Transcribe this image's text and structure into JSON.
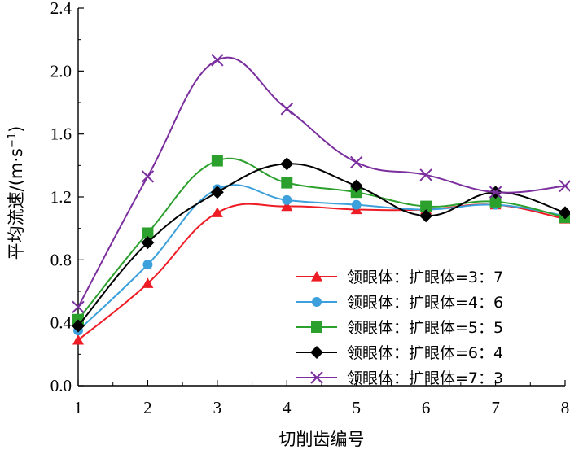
{
  "chart_data": {
    "type": "line",
    "title": "",
    "xlabel": "切削齿编号",
    "ylabel_main": "平均流速",
    "ylabel_unit_open": "/(m",
    "ylabel_unit_dot": "·",
    "ylabel_unit_s": "s",
    "ylabel_unit_exp": "−1",
    "ylabel_unit_close": ")",
    "ylabel": "平均流速/(m·s⁻¹)",
    "xlim": [
      1,
      8
    ],
    "ylim": [
      0,
      2.4
    ],
    "x": [
      1,
      2,
      3,
      4,
      5,
      6,
      7,
      8
    ],
    "x_tick_labels": [
      "1",
      "2",
      "3",
      "4",
      "5",
      "6",
      "7",
      "8"
    ],
    "y_ticks": [
      0.0,
      0.4,
      0.8,
      1.2,
      1.6,
      2.0,
      2.4
    ],
    "y_tick_labels": [
      "0.0",
      "0.4",
      "0.8",
      "1.2",
      "1.6",
      "2.0",
      "2.4"
    ],
    "grid": false,
    "legend_position": "bottom-right",
    "series": [
      {
        "name": "领眼体：扩眼体=3：7",
        "color": "#ee1c25",
        "marker": "triangle",
        "values": [
          0.29,
          0.65,
          1.1,
          1.14,
          1.12,
          1.12,
          1.15,
          1.06
        ]
      },
      {
        "name": "领眼体：扩眼体=4：6",
        "color": "#3ba0db",
        "marker": "circle",
        "values": [
          0.35,
          0.77,
          1.25,
          1.18,
          1.15,
          1.12,
          1.15,
          1.08
        ]
      },
      {
        "name": "领眼体：扩眼体=5：5",
        "color": "#2ca02c",
        "marker": "square",
        "values": [
          0.42,
          0.97,
          1.43,
          1.29,
          1.23,
          1.14,
          1.17,
          1.07
        ]
      },
      {
        "name": "领眼体：扩眼体=6：4",
        "color": "#000000",
        "marker": "diamond",
        "values": [
          0.38,
          0.91,
          1.23,
          1.41,
          1.27,
          1.08,
          1.23,
          1.1
        ]
      },
      {
        "name": "领眼体：扩眼体=7：3",
        "color": "#7b2f9e",
        "marker": "x",
        "values": [
          0.5,
          1.33,
          2.07,
          1.76,
          1.42,
          1.34,
          1.23,
          1.27
        ]
      }
    ]
  }
}
